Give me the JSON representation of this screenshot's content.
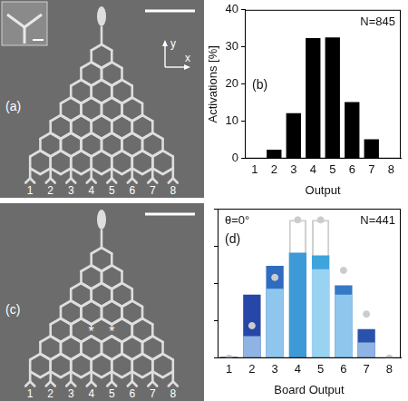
{
  "diagrams": [
    {
      "label": "(a)",
      "axis_labels": [
        "y",
        "x"
      ],
      "outputs": [
        "1",
        "2",
        "3",
        "4",
        "5",
        "6",
        "7",
        "8"
      ]
    },
    {
      "label": "(c)",
      "outputs": [
        "1",
        "2",
        "3",
        "4",
        "5",
        "6",
        "7",
        "8"
      ],
      "marks": [
        "*",
        "*"
      ]
    }
  ],
  "chart_data": [
    {
      "type": "bar",
      "panel": "(b)",
      "annotations": [
        "N=845"
      ],
      "x_label": "Output",
      "y_label": "Activations [%]",
      "categories": [
        "1",
        "2",
        "3",
        "4",
        "5",
        "6",
        "7",
        "8"
      ],
      "values": [
        0,
        2.4,
        12.2,
        32.4,
        32.6,
        15.2,
        5.2,
        0
      ],
      "color": "#000000",
      "ylim": [
        0,
        40
      ],
      "yticks": [
        0,
        10,
        20,
        30,
        40
      ],
      "grid": false
    },
    {
      "type": "bar",
      "panel": "(d)",
      "annotations": [
        "θ=0°",
        "N=441"
      ],
      "x_label": "Board Output",
      "categories": [
        "1",
        "2",
        "3",
        "4",
        "5",
        "6",
        "7",
        "8"
      ],
      "ylim": [
        0,
        40
      ],
      "yticks": [
        0,
        10,
        20,
        30,
        40
      ],
      "tick_labels": "x",
      "grid": false,
      "series": [
        {
          "type": "bar",
          "line_style": "solid",
          "color": "#cfcfcf",
          "values": [
            0,
            0,
            0,
            37,
            37,
            0,
            0,
            0
          ]
        },
        {
          "type": "bar",
          "colors": [
            "#1f3f9a",
            "#2747a8",
            "#2f6cc0",
            "#3d9ad6",
            "#3fa4dc",
            "#3479c6",
            "#2a52ad",
            "#1f3f9a"
          ],
          "values": [
            0.3,
            17,
            24.7,
            28.2,
            27.5,
            19.5,
            7.8,
            0
          ]
        },
        {
          "type": "bar",
          "colors": [
            "#8fb3e3",
            "#8fb3e3",
            "#8ec6ee",
            "#9ad2f2",
            "#9ad2f2",
            "#8ec6ee",
            "#8fb3e3",
            "#8fb3e3"
          ],
          "values": [
            0,
            5.9,
            18.6,
            0,
            23.8,
            17,
            4.2,
            0
          ]
        },
        {
          "type": "line",
          "marker": "circle",
          "line_style": "none",
          "color": "#cccccc",
          "values": [
            0,
            8.7,
            21.6,
            37,
            37,
            23.5,
            11.8,
            0
          ]
        }
      ]
    }
  ]
}
